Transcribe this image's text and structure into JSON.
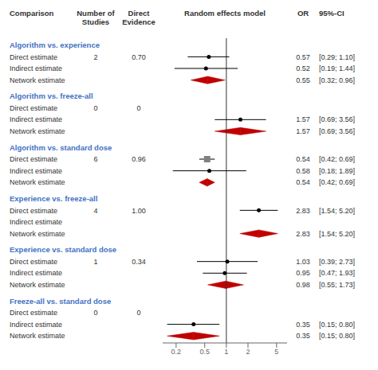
{
  "chart_data": {
    "type": "forest",
    "log": "x",
    "xlim": [
      0.13,
      7.0
    ],
    "xticks": [
      0.2,
      0.5,
      1,
      2,
      5
    ],
    "reference_line": 1,
    "columns": [
      "Comparison",
      "Number of\nStudies",
      "Direct\nEvidence",
      "Random effects model",
      "OR",
      "95%-CI"
    ],
    "sections": [
      {
        "label": "Algorithm vs. experience",
        "color": "#4472C4",
        "rows": [
          {
            "type": "direct",
            "label": "Direct estimate",
            "n_studies": 2,
            "direct_evidence": {
              "value": 0.7,
              "label": "0.70"
            },
            "value": 0.57,
            "ci": [
              0.29,
              1.1
            ],
            "ci_label": "[0.29; 1.10]",
            "marker": "circle"
          },
          {
            "type": "indirect",
            "label": "Indirect estimate",
            "value": 0.52,
            "ci": [
              0.19,
              1.44
            ],
            "ci_label": "[0.19; 1.44]",
            "marker": "circle"
          },
          {
            "type": "network",
            "label": "Network estimate",
            "value": 0.55,
            "ci": [
              0.32,
              0.96
            ],
            "ci_label": "[0.32; 0.96]",
            "color": "#C00000"
          }
        ]
      },
      {
        "label": "Algorithm vs. freeze-all",
        "color": "#4472C4",
        "rows": [
          {
            "type": "direct",
            "label": "Direct estimate",
            "n_studies": 0,
            "direct_evidence": 0,
            "value": null,
            "ci": null
          },
          {
            "type": "indirect",
            "label": "Indirect estimate",
            "value": 1.57,
            "ci": [
              0.69,
              3.56
            ],
            "ci_label": "[0.69; 3.56]",
            "marker": "circle"
          },
          {
            "type": "network",
            "label": "Network estimate",
            "value": 1.57,
            "ci": [
              0.69,
              3.56
            ],
            "ci_label": "[0.69; 3.56]",
            "color": "#C00000"
          }
        ]
      },
      {
        "label": "Algorithm vs. standard dose",
        "color": "#4472C4",
        "rows": [
          {
            "type": "direct",
            "label": "Direct estimate",
            "n_studies": 6,
            "direct_evidence": 0.96,
            "value": 0.54,
            "ci": [
              0.42,
              0.69
            ],
            "ci_label": "[0.42; 0.69]",
            "marker": "square",
            "color": "#808080"
          },
          {
            "type": "indirect",
            "label": "Indirect estimate",
            "value": 0.58,
            "ci": [
              0.18,
              1.89
            ],
            "ci_label": "[0.18; 1.89]",
            "marker": "circle"
          },
          {
            "type": "network",
            "label": "Network estimate",
            "value": 0.54,
            "ci": [
              0.42,
              0.69
            ],
            "ci_label": "[0.42; 0.69]",
            "color": "#C00000"
          }
        ]
      },
      {
        "label": "Experience vs. freeze-all",
        "color": "#4472C4",
        "rows": [
          {
            "type": "direct",
            "label": "Direct estimate",
            "n_studies": 4,
            "direct_evidence": {
              "value": 1.0,
              "label": "1.00"
            },
            "value": 2.83,
            "ci": [
              1.54,
              5.2
            ],
            "ci_label": "[1.54; 5.20]",
            "marker": "circle"
          },
          {
            "type": "indirect",
            "label": "Indirect estimate",
            "value": null,
            "ci": null
          },
          {
            "type": "network",
            "label": "Network estimate",
            "value": 2.83,
            "ci": [
              1.54,
              5.2
            ],
            "ci_label": "[1.54; 5.20]",
            "color": "#C00000"
          }
        ]
      },
      {
        "label": "Experience vs. standard dose",
        "color": "#4472C4",
        "rows": [
          {
            "type": "direct",
            "label": "Direct estimate",
            "n_studies": 1,
            "direct_evidence": 0.34,
            "value": 1.03,
            "ci": [
              0.39,
              2.73
            ],
            "ci_label": "[0.39; 2.73]",
            "marker": "circle"
          },
          {
            "type": "indirect",
            "label": "Indirect estimate",
            "value": 0.95,
            "ci": [
              0.47,
              1.93
            ],
            "ci_label": "[0.47; 1.93]",
            "marker": "circle"
          },
          {
            "type": "network",
            "label": "Network estimate",
            "value": 0.98,
            "ci": [
              0.55,
              1.73
            ],
            "ci_label": "[0.55; 1.73]",
            "color": "#C00000"
          }
        ]
      },
      {
        "label": "Freeze-all vs. standard dose",
        "color": "#4472C4",
        "rows": [
          {
            "type": "direct",
            "label": "Direct estimate",
            "n_studies": 0,
            "direct_evidence": 0,
            "value": null,
            "ci": null
          },
          {
            "type": "indirect",
            "label": "Indirect estimate",
            "value": 0.35,
            "ci": [
              0.15,
              0.8
            ],
            "ci_label": "[0.15; 0.80]",
            "marker": "circle"
          },
          {
            "type": "network",
            "label": "Network estimate",
            "value": 0.35,
            "ci": [
              0.15,
              0.8
            ],
            "ci_label": "[0.15; 0.80]",
            "color": "#C00000"
          }
        ]
      }
    ]
  }
}
